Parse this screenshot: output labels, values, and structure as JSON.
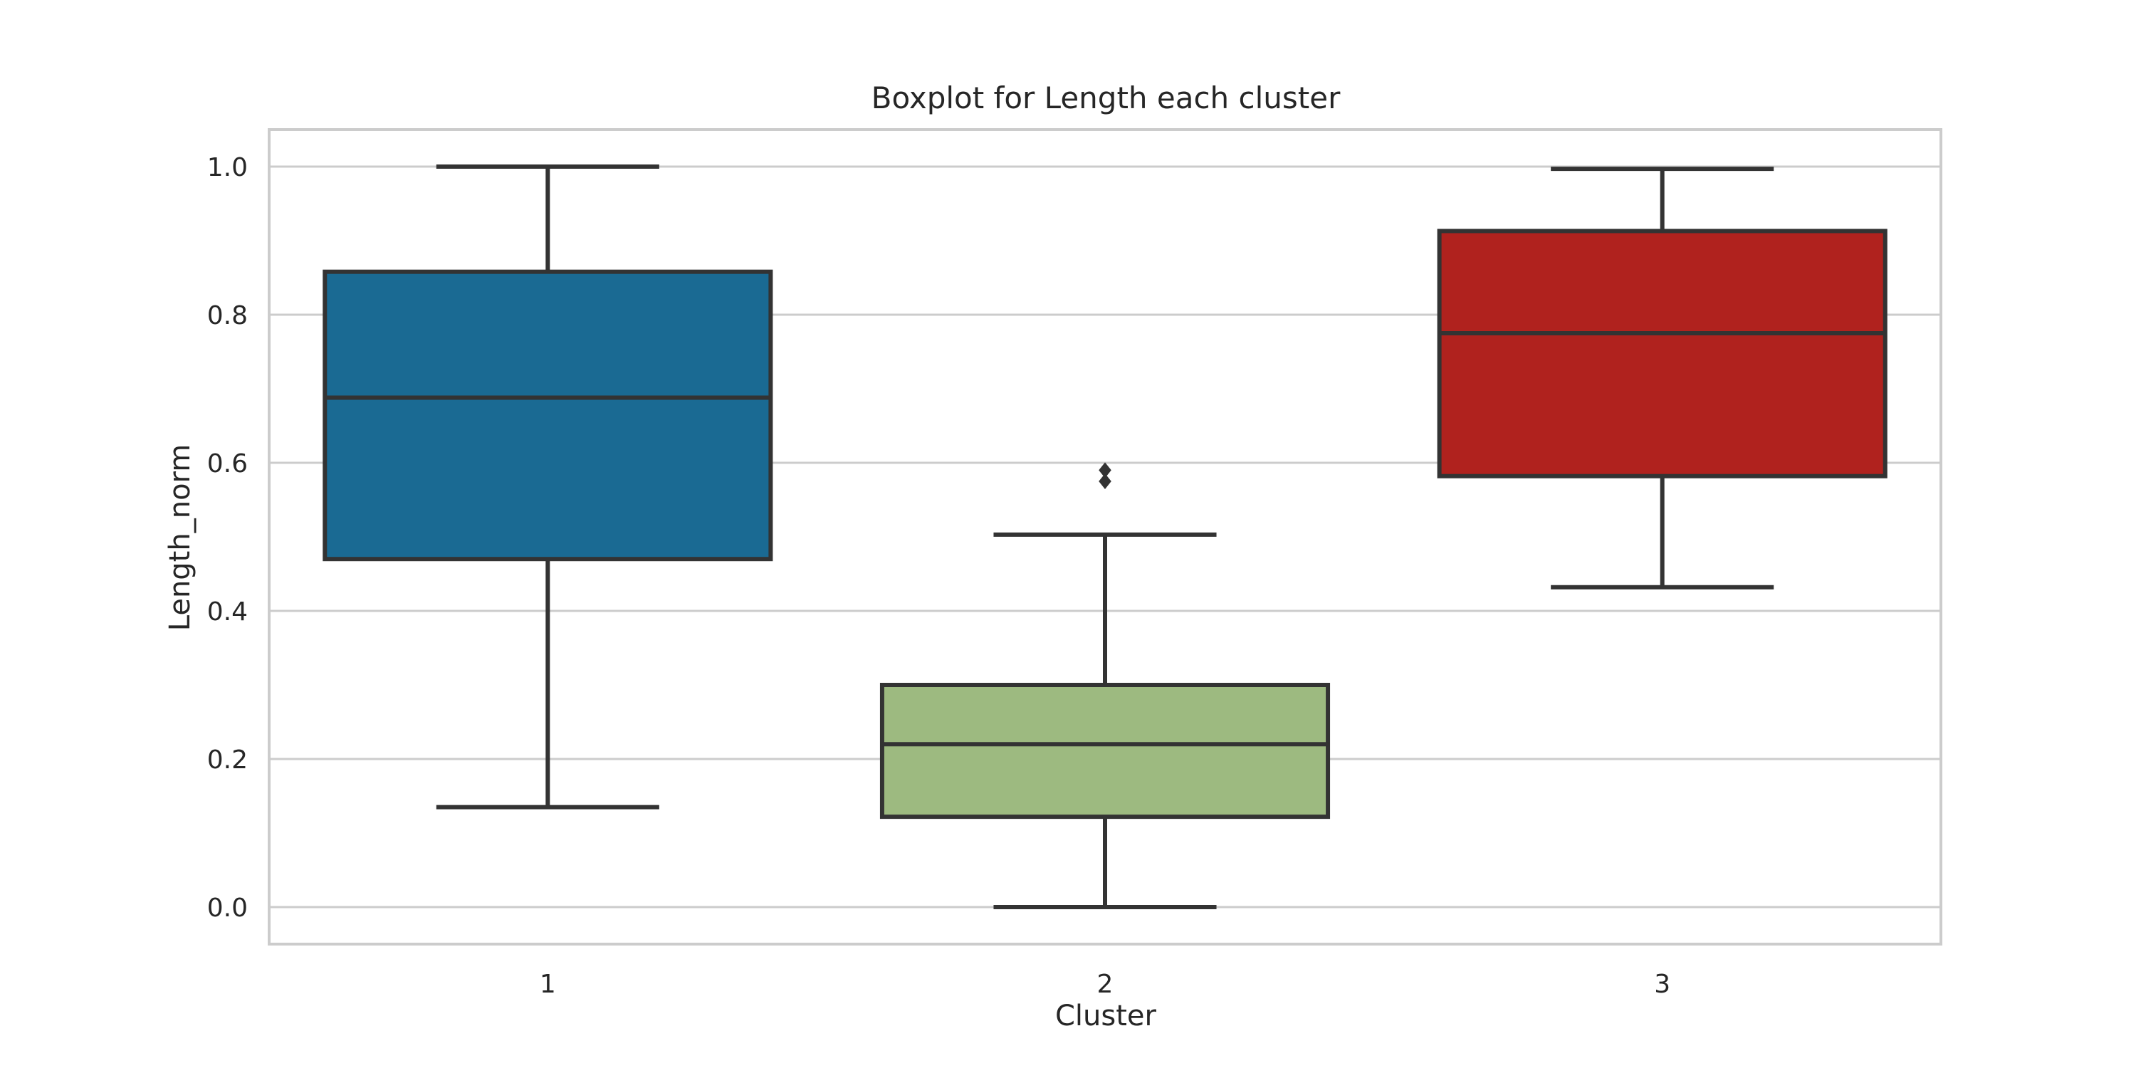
{
  "chart_data": {
    "type": "boxplot",
    "title": "Boxplot for Length each cluster",
    "xlabel": "Cluster",
    "ylabel": "Length_norm",
    "ylim": [
      -0.05,
      1.05
    ],
    "yticks": [
      0.0,
      0.2,
      0.4,
      0.6,
      0.8,
      1.0
    ],
    "ytick_labels": [
      "0.0",
      "0.2",
      "0.4",
      "0.6",
      "0.8",
      "1.0"
    ],
    "grid": true,
    "categories": [
      "1",
      "2",
      "3"
    ],
    "boxes": [
      {
        "category": "1",
        "whislo": 0.135,
        "q1": 0.47,
        "median": 0.688,
        "q3": 0.858,
        "whishi": 1.0,
        "fliers": [],
        "color": "#1a6a93"
      },
      {
        "category": "2",
        "whislo": 0.0,
        "q1": 0.122,
        "median": 0.22,
        "q3": 0.3,
        "whishi": 0.503,
        "fliers": [
          0.575,
          0.59
        ],
        "color": "#9dba80"
      },
      {
        "category": "3",
        "whislo": 0.432,
        "q1": 0.582,
        "median": 0.775,
        "q3": 0.913,
        "whishi": 0.997,
        "fliers": [],
        "color": "#b0221e"
      }
    ]
  }
}
